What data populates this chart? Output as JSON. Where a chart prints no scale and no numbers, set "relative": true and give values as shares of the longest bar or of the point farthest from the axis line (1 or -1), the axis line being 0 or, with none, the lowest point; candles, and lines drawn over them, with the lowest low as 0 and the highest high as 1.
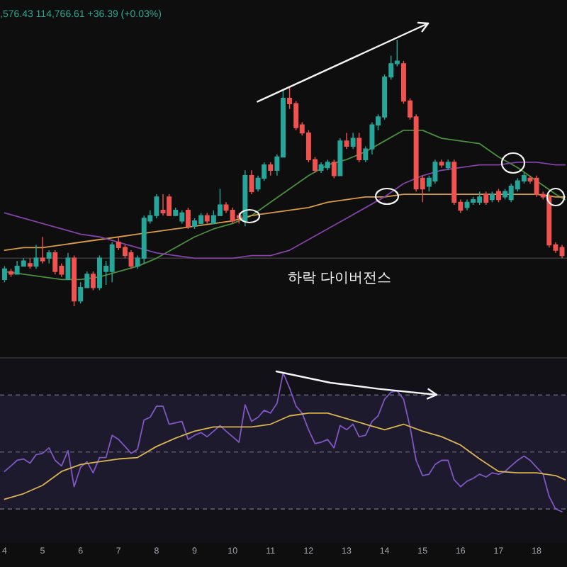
{
  "chart_data": [
    {
      "type": "candlestick",
      "relative": true,
      "x": [
        4,
        4.17,
        4.33,
        4.5,
        4.67,
        4.83,
        5,
        5.17,
        5.33,
        5.5,
        5.67,
        5.83,
        6,
        6.17,
        6.33,
        6.5,
        6.67,
        6.83,
        7,
        7.17,
        7.33,
        7.5,
        7.67,
        7.83,
        8,
        8.17,
        8.33,
        8.5,
        8.67,
        8.83,
        9,
        9.17,
        9.33,
        9.5,
        9.67,
        9.83,
        10,
        10.17,
        10.33,
        10.5,
        10.67,
        10.83,
        11,
        11.17,
        11.33,
        11.5,
        11.67,
        11.83,
        12,
        12.17,
        12.33,
        12.5,
        12.67,
        12.83,
        13,
        13.17,
        13.33,
        13.5,
        13.67,
        13.83,
        14,
        14.17,
        14.33,
        14.5,
        14.67,
        14.83,
        15,
        15.17,
        15.33,
        15.5,
        15.67,
        15.83,
        16,
        16.17,
        16.33,
        16.5,
        16.67,
        16.83,
        17,
        17.17,
        17.33,
        17.5,
        17.67,
        17.83,
        18,
        18.17,
        18.33,
        18.5,
        18.67
      ],
      "xlim": [
        3.88,
        18.8
      ],
      "tick_labels": false,
      "ohlc": [
        [
          0.1,
          0.15,
          0.09,
          0.14
        ],
        [
          0.13,
          0.14,
          0.11,
          0.12
        ],
        [
          0.12,
          0.17,
          0.12,
          0.15
        ],
        [
          0.15,
          0.18,
          0.15,
          0.17
        ],
        [
          0.16,
          0.18,
          0.14,
          0.15
        ],
        [
          0.15,
          0.23,
          0.14,
          0.18
        ],
        [
          0.18,
          0.26,
          0.16,
          0.17
        ],
        [
          0.18,
          0.21,
          0.16,
          0.2
        ],
        [
          0.2,
          0.21,
          0.12,
          0.13
        ],
        [
          0.15,
          0.16,
          0.11,
          0.12
        ],
        [
          0.1,
          0.2,
          0.1,
          0.18
        ],
        [
          0.18,
          0.19,
          0,
          0.02
        ],
        [
          0.02,
          0.09,
          0.01,
          0.07
        ],
        [
          0.07,
          0.13,
          0.07,
          0.12
        ],
        [
          0.12,
          0.13,
          0.06,
          0.07
        ],
        [
          0.07,
          0.19,
          0.06,
          0.18
        ],
        [
          0.13,
          0.17,
          0.08,
          0.15
        ],
        [
          0.13,
          0.24,
          0.09,
          0.23
        ],
        [
          0.24,
          0.26,
          0.21,
          0.22
        ],
        [
          0.22,
          0.23,
          0.18,
          0.19
        ],
        [
          0.2,
          0.21,
          0.14,
          0.15
        ],
        [
          0.15,
          0.19,
          0.14,
          0.18
        ],
        [
          0.18,
          0.34,
          0.16,
          0.33
        ],
        [
          0.32,
          0.36,
          0.31,
          0.34
        ],
        [
          0.34,
          0.42,
          0.33,
          0.41
        ],
        [
          0.36,
          0.42,
          0.34,
          0.35
        ],
        [
          0.41,
          0.42,
          0.34,
          0.34
        ],
        [
          0.34,
          0.37,
          0.34,
          0.36
        ],
        [
          0.32,
          0.36,
          0.31,
          0.35
        ],
        [
          0.36,
          0.37,
          0.29,
          0.3
        ],
        [
          0.3,
          0.33,
          0.29,
          0.32
        ],
        [
          0.31,
          0.35,
          0.31,
          0.34
        ],
        [
          0.34,
          0.35,
          0.31,
          0.32
        ],
        [
          0.31,
          0.36,
          0.31,
          0.34
        ],
        [
          0.34,
          0.44,
          0.34,
          0.38
        ],
        [
          0.38,
          0.39,
          0.35,
          0.36
        ],
        [
          0.36,
          0.37,
          0.31,
          0.32
        ],
        [
          0.34,
          0.35,
          0.31,
          0.33
        ],
        [
          0.32,
          0.51,
          0.3,
          0.49
        ],
        [
          0.49,
          0.51,
          0.42,
          0.43
        ],
        [
          0.44,
          0.49,
          0.43,
          0.48
        ],
        [
          0.48,
          0.54,
          0.47,
          0.53
        ],
        [
          0.53,
          0.54,
          0.49,
          0.51
        ],
        [
          0.51,
          0.57,
          0.49,
          0.56
        ],
        [
          0.56,
          0.81,
          0.56,
          0.78
        ],
        [
          0.78,
          0.82,
          0.74,
          0.76
        ],
        [
          0.76,
          0.77,
          0.66,
          0.67
        ],
        [
          0.68,
          0.69,
          0.64,
          0.65
        ],
        [
          0.65,
          0.66,
          0.54,
          0.55
        ],
        [
          0.55,
          0.56,
          0.5,
          0.51
        ],
        [
          0.51,
          0.54,
          0.5,
          0.53
        ],
        [
          0.52,
          0.55,
          0.51,
          0.54
        ],
        [
          0.54,
          0.55,
          0.48,
          0.49
        ],
        [
          0.49,
          0.63,
          0.49,
          0.62
        ],
        [
          0.62,
          0.65,
          0.59,
          0.6
        ],
        [
          0.6,
          0.65,
          0.59,
          0.63
        ],
        [
          0.63,
          0.65,
          0.54,
          0.55
        ],
        [
          0.55,
          0.6,
          0.54,
          0.59
        ],
        [
          0.59,
          0.69,
          0.57,
          0.68
        ],
        [
          0.68,
          0.72,
          0.66,
          0.71
        ],
        [
          0.71,
          0.87,
          0.7,
          0.86
        ],
        [
          0.86,
          0.94,
          0.85,
          0.91
        ],
        [
          0.91,
          1,
          0.9,
          0.92
        ],
        [
          0.91,
          0.92,
          0.76,
          0.77
        ],
        [
          0.77,
          0.78,
          0.7,
          0.71
        ],
        [
          0.71,
          0.72,
          0.43,
          0.44
        ],
        [
          0.48,
          0.49,
          0.39,
          0.44
        ],
        [
          0.45,
          0.49,
          0.43,
          0.48
        ],
        [
          0.47,
          0.55,
          0.46,
          0.54
        ],
        [
          0.54,
          0.55,
          0.52,
          0.53
        ],
        [
          0.52,
          0.55,
          0.51,
          0.54
        ],
        [
          0.54,
          0.55,
          0.38,
          0.39
        ],
        [
          0.39,
          0.4,
          0.35,
          0.36
        ],
        [
          0.37,
          0.4,
          0.36,
          0.39
        ],
        [
          0.39,
          0.41,
          0.38,
          0.4
        ],
        [
          0.39,
          0.43,
          0.38,
          0.41
        ],
        [
          0.42,
          0.43,
          0.38,
          0.39
        ],
        [
          0.4,
          0.43,
          0.39,
          0.42
        ],
        [
          0.43,
          0.44,
          0.39,
          0.4
        ],
        [
          0.41,
          0.44,
          0.4,
          0.43
        ],
        [
          0.4,
          0.46,
          0.39,
          0.45
        ],
        [
          0.44,
          0.48,
          0.43,
          0.47
        ],
        [
          0.47,
          0.5,
          0.46,
          0.49
        ],
        [
          0.48,
          0.49,
          0.46,
          0.47
        ],
        [
          0.48,
          0.49,
          0.41,
          0.42
        ],
        [
          0.42,
          0.43,
          0.4,
          0.41
        ],
        [
          0.41,
          0.42,
          0.22,
          0.23
        ],
        [
          0.23,
          0.24,
          0.2,
          0.21
        ],
        [
          0.22,
          0.23,
          0.18,
          0.19
        ]
      ],
      "colors": [
        "#26a69a",
        "#ef5350",
        "#26a69a",
        "#26a69a",
        "#ef5350",
        "#26a69a",
        "#ef5350",
        "#26a69a",
        "#ef5350",
        "#ef5350",
        "#26a69a",
        "#ef5350",
        "#26a69a",
        "#26a69a",
        "#ef5350",
        "#26a69a",
        "#26a69a",
        "#26a69a",
        "#ef5350",
        "#ef5350",
        "#ef5350",
        "#26a69a",
        "#26a69a",
        "#26a69a",
        "#26a69a",
        "#ef5350",
        "#ef5350",
        "#26a69a",
        "#26a69a",
        "#ef5350",
        "#26a69a",
        "#26a69a",
        "#ef5350",
        "#26a69a",
        "#26a69a",
        "#ef5350",
        "#ef5350",
        "#ef5350",
        "#26a69a",
        "#ef5350",
        "#26a69a",
        "#26a69a",
        "#ef5350",
        "#26a69a",
        "#26a69a",
        "#ef5350",
        "#ef5350",
        "#ef5350",
        "#ef5350",
        "#ef5350",
        "#26a69a",
        "#26a69a",
        "#ef5350",
        "#26a69a",
        "#ef5350",
        "#26a69a",
        "#ef5350",
        "#26a69a",
        "#26a69a",
        "#26a69a",
        "#26a69a",
        "#26a69a",
        "#26a69a",
        "#ef5350",
        "#ef5350",
        "#ef5350",
        "#ef5350",
        "#26a69a",
        "#26a69a",
        "#ef5350",
        "#26a69a",
        "#ef5350",
        "#ef5350",
        "#26a69a",
        "#26a69a",
        "#26a69a",
        "#ef5350",
        "#26a69a",
        "#ef5350",
        "#26a69a",
        "#26a69a",
        "#26a69a",
        "#26a69a",
        "#ef5350",
        "#ef5350",
        "#ef5350",
        "#ef5350",
        "#ef5350",
        "#ef5350"
      ],
      "series": [
        {
          "type": "line",
          "color": "#4a8f3c",
          "x": [
            4,
            4.5,
            5,
            5.5,
            6,
            6.5,
            7,
            7.5,
            8,
            8.5,
            9,
            9.5,
            10,
            10.5,
            11,
            11.5,
            12,
            12.5,
            13,
            13.5,
            14,
            14.5,
            15,
            15.5,
            16,
            16.5,
            17,
            17.5,
            18,
            18.5,
            18.75
          ],
          "values": [
            0.13,
            0.12,
            0.11,
            0.1,
            0.1,
            0.11,
            0.13,
            0.15,
            0.18,
            0.22,
            0.26,
            0.29,
            0.31,
            0.34,
            0.39,
            0.44,
            0.49,
            0.53,
            0.55,
            0.58,
            0.62,
            0.66,
            0.66,
            0.63,
            0.62,
            0.61,
            0.56,
            0.52,
            0.47,
            0.42,
            0.4
          ]
        },
        {
          "type": "line",
          "color": "#d89c45",
          "x": [
            4,
            4.5,
            5,
            5.5,
            6,
            6.5,
            7,
            7.5,
            8,
            8.5,
            9,
            9.5,
            10,
            10.5,
            11,
            11.5,
            12,
            12.5,
            13,
            13.5,
            14,
            14.5,
            15,
            15.5,
            16,
            16.5,
            17,
            17.5,
            18,
            18.5,
            18.75
          ],
          "values": [
            0.21,
            0.22,
            0.22,
            0.23,
            0.24,
            0.25,
            0.26,
            0.27,
            0.28,
            0.29,
            0.3,
            0.31,
            0.32,
            0.34,
            0.35,
            0.36,
            0.37,
            0.39,
            0.4,
            0.41,
            0.41,
            0.42,
            0.42,
            0.42,
            0.42,
            0.42,
            0.42,
            0.42,
            0.42,
            0.41,
            0.41
          ]
        },
        {
          "type": "line",
          "color": "#8242a8",
          "x": [
            4,
            4.5,
            5,
            5.5,
            6,
            6.5,
            7,
            7.5,
            8,
            8.5,
            9,
            9.5,
            10,
            10.5,
            11,
            11.5,
            12,
            12.5,
            13,
            13.5,
            14,
            14.5,
            15,
            15.5,
            16,
            16.5,
            17,
            17.5,
            18,
            18.5,
            18.75
          ],
          "values": [
            0.35,
            0.33,
            0.31,
            0.29,
            0.27,
            0.26,
            0.24,
            0.22,
            0.2,
            0.19,
            0.18,
            0.18,
            0.18,
            0.19,
            0.19,
            0.21,
            0.25,
            0.29,
            0.33,
            0.37,
            0.41,
            0.46,
            0.49,
            0.51,
            0.52,
            0.53,
            0.53,
            0.54,
            0.54,
            0.53,
            0.53
          ]
        }
      ],
      "ref_lines": [
        {
          "axis": "y",
          "value": 0.18,
          "color": "#3a3a40"
        }
      ],
      "annotations": [
        ",576.43 114,766.61 +36.39 (+0.03%)",
        "하락 다이버전스"
      ]
    },
    {
      "type": "line",
      "relative": true,
      "x": [
        4,
        4.17,
        4.33,
        4.5,
        4.67,
        4.83,
        5,
        5.17,
        5.33,
        5.5,
        5.67,
        5.83,
        6,
        6.17,
        6.33,
        6.5,
        6.67,
        6.83,
        7,
        7.17,
        7.33,
        7.5,
        7.67,
        7.83,
        8,
        8.17,
        8.33,
        8.5,
        8.67,
        8.83,
        9,
        9.17,
        9.33,
        9.5,
        9.67,
        9.83,
        10,
        10.17,
        10.33,
        10.5,
        10.67,
        10.83,
        11,
        11.17,
        11.33,
        11.5,
        11.67,
        11.83,
        12,
        12.17,
        12.33,
        12.5,
        12.67,
        12.83,
        13,
        13.17,
        13.33,
        13.5,
        13.67,
        13.83,
        14,
        14.17,
        14.33,
        14.5,
        14.67,
        14.83,
        15,
        15.17,
        15.33,
        15.5,
        15.67,
        15.83,
        16,
        16.17,
        16.33,
        16.5,
        16.67,
        16.83,
        17,
        17.17,
        17.33,
        17.5,
        17.67,
        17.83,
        18,
        18.17,
        18.33,
        18.5,
        18.67
      ],
      "xlim": [
        3.88,
        18.8
      ],
      "xticks": [
        4,
        5,
        6,
        7,
        8,
        9,
        10,
        11,
        12,
        13,
        14,
        15,
        16,
        17,
        18
      ],
      "tick_labels": "x",
      "series": [
        {
          "color": "#7e57c2",
          "values": [
            0.29,
            0.33,
            0.37,
            0.38,
            0.35,
            0.41,
            0.42,
            0.46,
            0.37,
            0.33,
            0.44,
            0.18,
            0.32,
            0.36,
            0.28,
            0.39,
            0.39,
            0.55,
            0.52,
            0.47,
            0.42,
            0.45,
            0.66,
            0.68,
            0.76,
            0.76,
            0.63,
            0.64,
            0.65,
            0.52,
            0.55,
            0.57,
            0.54,
            0.58,
            0.62,
            0.58,
            0.54,
            0.5,
            0.77,
            0.65,
            0.68,
            0.73,
            0.71,
            0.78,
            1,
            0.89,
            0.76,
            0.71,
            0.59,
            0.49,
            0.5,
            0.52,
            0.46,
            0.62,
            0.59,
            0.63,
            0.54,
            0.55,
            0.65,
            0.69,
            0.81,
            0.86,
            0.87,
            0.81,
            0.61,
            0.37,
            0.26,
            0.27,
            0.34,
            0.37,
            0.37,
            0.23,
            0.18,
            0.22,
            0.24,
            0.27,
            0.25,
            0.28,
            0.27,
            0.29,
            0.33,
            0.37,
            0.4,
            0.37,
            0.32,
            0.27,
            0.11,
            0.02,
            0
          ]
        },
        {
          "color": "#d8b450",
          "x": [
            4,
            4.5,
            5,
            5.5,
            6,
            6.5,
            7,
            7.5,
            8,
            8.5,
            9,
            9.5,
            10,
            10.5,
            11,
            11.5,
            12,
            12.5,
            13,
            13.5,
            14,
            14.5,
            15,
            15.5,
            16,
            16.5,
            17,
            17.5,
            18,
            18.5,
            18.75
          ],
          "values": [
            0.09,
            0.13,
            0.19,
            0.29,
            0.34,
            0.36,
            0.38,
            0.39,
            0.47,
            0.53,
            0.58,
            0.61,
            0.61,
            0.61,
            0.63,
            0.69,
            0.71,
            0.71,
            0.67,
            0.63,
            0.59,
            0.63,
            0.58,
            0.54,
            0.48,
            0.38,
            0.29,
            0.28,
            0.28,
            0.26,
            0.23
          ]
        }
      ],
      "bands": [
        {
          "axis": "y",
          "from": 0.02,
          "to": 0.84,
          "color": "#1e1a2e"
        }
      ],
      "ref_lines": [
        {
          "axis": "y",
          "value": 0.84,
          "color": "#5f5b6e",
          "line_style": "dashed"
        },
        {
          "axis": "y",
          "value": 0.43,
          "color": "#5f5b6e",
          "line_style": "dashed"
        },
        {
          "axis": "y",
          "value": 0.02,
          "color": "#5f5b6e",
          "line_style": "dashed"
        }
      ]
    }
  ]
}
